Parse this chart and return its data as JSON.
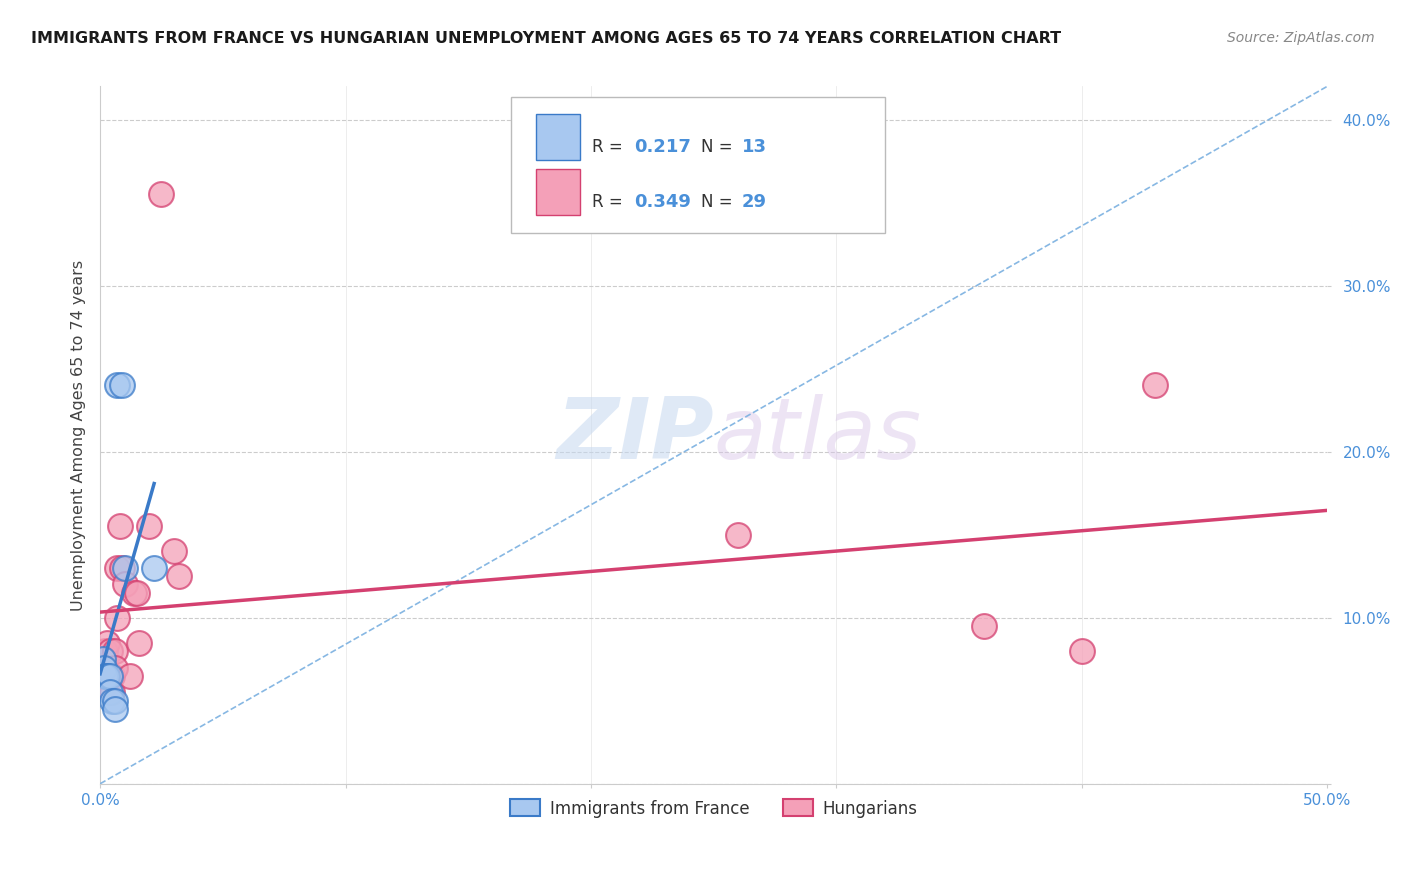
{
  "title": "IMMIGRANTS FROM FRANCE VS HUNGARIAN UNEMPLOYMENT AMONG AGES 65 TO 74 YEARS CORRELATION CHART",
  "source": "Source: ZipAtlas.com",
  "ylabel": "Unemployment Among Ages 65 to 74 years",
  "xlim": [
    0,
    0.5
  ],
  "ylim": [
    0,
    0.42
  ],
  "xticks": [
    0.0,
    0.1,
    0.2,
    0.3,
    0.4,
    0.5
  ],
  "yticks": [
    0.0,
    0.1,
    0.2,
    0.3,
    0.4
  ],
  "xtick_labels": [
    "0.0%",
    "",
    "",
    "",
    "",
    "50.0%"
  ],
  "ytick_labels": [
    "",
    "10.0%",
    "20.0%",
    "30.0%",
    "40.0%"
  ],
  "blue_label": "Immigrants from France",
  "pink_label": "Hungarians",
  "blue_R": "0.217",
  "blue_N": "13",
  "pink_R": "0.349",
  "pink_N": "29",
  "blue_color": "#a8c8f0",
  "blue_line_color": "#3a7ac8",
  "pink_color": "#f4a0b8",
  "pink_line_color": "#d44070",
  "watermark_zip": "ZIP",
  "watermark_atlas": "atlas",
  "blue_points_x": [
    0.001,
    0.0015,
    0.002,
    0.003,
    0.004,
    0.004,
    0.005,
    0.006,
    0.006,
    0.007,
    0.009,
    0.01,
    0.022
  ],
  "blue_points_y": [
    0.075,
    0.07,
    0.065,
    0.065,
    0.065,
    0.055,
    0.05,
    0.05,
    0.045,
    0.24,
    0.24,
    0.13,
    0.13
  ],
  "pink_points_x": [
    0.0005,
    0.001,
    0.001,
    0.002,
    0.002,
    0.003,
    0.003,
    0.004,
    0.005,
    0.005,
    0.006,
    0.006,
    0.007,
    0.007,
    0.008,
    0.009,
    0.01,
    0.012,
    0.014,
    0.015,
    0.016,
    0.02,
    0.025,
    0.03,
    0.032,
    0.26,
    0.36,
    0.4,
    0.43
  ],
  "pink_points_y": [
    0.07,
    0.075,
    0.065,
    0.08,
    0.06,
    0.085,
    0.065,
    0.08,
    0.065,
    0.055,
    0.08,
    0.07,
    0.13,
    0.1,
    0.155,
    0.13,
    0.12,
    0.065,
    0.115,
    0.115,
    0.085,
    0.155,
    0.355,
    0.14,
    0.125,
    0.15,
    0.095,
    0.08,
    0.24
  ],
  "background_color": "#ffffff",
  "grid_color": "#cccccc",
  "tick_color": "#4a90d9"
}
